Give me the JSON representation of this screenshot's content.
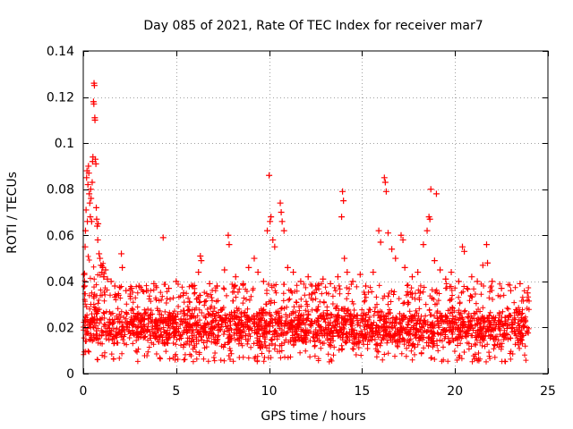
{
  "chart_data": {
    "type": "scatter",
    "title": "Day 085 of 2021, Rate Of TEC Index for receiver mar7",
    "xlabel": "GPS time / hours",
    "ylabel": "ROTI / TECUs",
    "xlim": [
      0,
      25
    ],
    "ylim": [
      0,
      0.14
    ],
    "x_ticks": [
      0,
      5,
      10,
      15,
      20,
      25
    ],
    "x_tick_labels": [
      "0",
      "5",
      "10",
      "15",
      "20",
      "25"
    ],
    "y_ticks": [
      0,
      0.02,
      0.04,
      0.06,
      0.08,
      0.1,
      0.12,
      0.14
    ],
    "y_tick_labels": [
      "0",
      "0.02",
      "0.04",
      "0.06",
      "0.08",
      "0.1",
      "0.12",
      "0.14"
    ],
    "grid": true,
    "marker": "plus",
    "color": "#ff0000",
    "data_coverage": {
      "x_start": 0,
      "x_end": 24
    },
    "baseline_band": {
      "typical_min": 0.01,
      "typical_max": 0.03,
      "median": 0.018
    },
    "series": [
      {
        "name": "ROTI",
        "points": [
          [
            0.05,
            0.043
          ],
          [
            0.08,
            0.038
          ],
          [
            0.1,
            0.055
          ],
          [
            0.12,
            0.062
          ],
          [
            0.15,
            0.071
          ],
          [
            0.18,
            0.085
          ],
          [
            0.2,
            0.088
          ],
          [
            0.22,
            0.066
          ],
          [
            0.25,
            0.082
          ],
          [
            0.28,
            0.09
          ],
          [
            0.3,
            0.087
          ],
          [
            0.32,
            0.078
          ],
          [
            0.35,
            0.074
          ],
          [
            0.38,
            0.068
          ],
          [
            0.4,
            0.08
          ],
          [
            0.42,
            0.076
          ],
          [
            0.45,
            0.066
          ],
          [
            0.48,
            0.083
          ],
          [
            0.5,
            0.092
          ],
          [
            0.52,
            0.094
          ],
          [
            0.55,
            0.118
          ],
          [
            0.57,
            0.117
          ],
          [
            0.58,
            0.126
          ],
          [
            0.6,
            0.125
          ],
          [
            0.62,
            0.111
          ],
          [
            0.63,
            0.11
          ],
          [
            0.65,
            0.093
          ],
          [
            0.68,
            0.091
          ],
          [
            0.7,
            0.072
          ],
          [
            0.72,
            0.067
          ],
          [
            0.75,
            0.064
          ],
          [
            0.78,
            0.058
          ],
          [
            0.8,
            0.065
          ],
          [
            0.85,
            0.052
          ],
          [
            0.9,
            0.05
          ],
          [
            0.95,
            0.047
          ],
          [
            1.0,
            0.044
          ],
          [
            1.05,
            0.046
          ],
          [
            1.1,
            0.042
          ],
          [
            1.2,
            0.045
          ],
          [
            1.3,
            0.041
          ],
          [
            1.5,
            0.04
          ],
          [
            1.7,
            0.038
          ],
          [
            1.9,
            0.034
          ],
          [
            2.05,
            0.052
          ],
          [
            2.1,
            0.046
          ],
          [
            2.3,
            0.036
          ],
          [
            2.6,
            0.037
          ],
          [
            3.0,
            0.038
          ],
          [
            3.4,
            0.036
          ],
          [
            3.8,
            0.039
          ],
          [
            4.3,
            0.059
          ],
          [
            4.6,
            0.037
          ],
          [
            5.0,
            0.04
          ],
          [
            5.4,
            0.035
          ],
          [
            5.9,
            0.038
          ],
          [
            6.2,
            0.044
          ],
          [
            6.3,
            0.051
          ],
          [
            6.35,
            0.049
          ],
          [
            6.8,
            0.039
          ],
          [
            7.2,
            0.038
          ],
          [
            7.6,
            0.045
          ],
          [
            7.8,
            0.06
          ],
          [
            7.85,
            0.056
          ],
          [
            8.2,
            0.042
          ],
          [
            8.6,
            0.039
          ],
          [
            8.9,
            0.046
          ],
          [
            9.2,
            0.05
          ],
          [
            9.4,
            0.044
          ],
          [
            9.7,
            0.04
          ],
          [
            9.9,
            0.062
          ],
          [
            10.0,
            0.086
          ],
          [
            10.05,
            0.066
          ],
          [
            10.1,
            0.068
          ],
          [
            10.2,
            0.058
          ],
          [
            10.3,
            0.055
          ],
          [
            10.6,
            0.074
          ],
          [
            10.65,
            0.07
          ],
          [
            10.7,
            0.066
          ],
          [
            10.8,
            0.062
          ],
          [
            11.0,
            0.046
          ],
          [
            11.3,
            0.044
          ],
          [
            11.7,
            0.04
          ],
          [
            12.1,
            0.042
          ],
          [
            12.5,
            0.038
          ],
          [
            12.9,
            0.041
          ],
          [
            13.3,
            0.039
          ],
          [
            13.7,
            0.042
          ],
          [
            13.9,
            0.068
          ],
          [
            13.95,
            0.079
          ],
          [
            14.0,
            0.075
          ],
          [
            14.05,
            0.05
          ],
          [
            14.2,
            0.044
          ],
          [
            14.5,
            0.04
          ],
          [
            14.9,
            0.043
          ],
          [
            15.2,
            0.038
          ],
          [
            15.6,
            0.044
          ],
          [
            15.9,
            0.062
          ],
          [
            16.0,
            0.057
          ],
          [
            16.2,
            0.085
          ],
          [
            16.25,
            0.083
          ],
          [
            16.3,
            0.079
          ],
          [
            16.4,
            0.061
          ],
          [
            16.6,
            0.054
          ],
          [
            16.8,
            0.05
          ],
          [
            17.1,
            0.06
          ],
          [
            17.2,
            0.058
          ],
          [
            17.3,
            0.046
          ],
          [
            17.7,
            0.042
          ],
          [
            18.0,
            0.044
          ],
          [
            18.3,
            0.056
          ],
          [
            18.5,
            0.062
          ],
          [
            18.6,
            0.068
          ],
          [
            18.65,
            0.067
          ],
          [
            18.7,
            0.08
          ],
          [
            18.9,
            0.049
          ],
          [
            19.0,
            0.078
          ],
          [
            19.2,
            0.045
          ],
          [
            19.5,
            0.041
          ],
          [
            19.8,
            0.044
          ],
          [
            20.2,
            0.04
          ],
          [
            20.4,
            0.055
          ],
          [
            20.5,
            0.053
          ],
          [
            20.9,
            0.042
          ],
          [
            21.2,
            0.04
          ],
          [
            21.5,
            0.047
          ],
          [
            21.7,
            0.056
          ],
          [
            21.75,
            0.048
          ],
          [
            22.0,
            0.04
          ],
          [
            22.5,
            0.037
          ],
          [
            23.0,
            0.036
          ],
          [
            23.5,
            0.039
          ],
          [
            23.9,
            0.035
          ]
        ]
      }
    ]
  }
}
